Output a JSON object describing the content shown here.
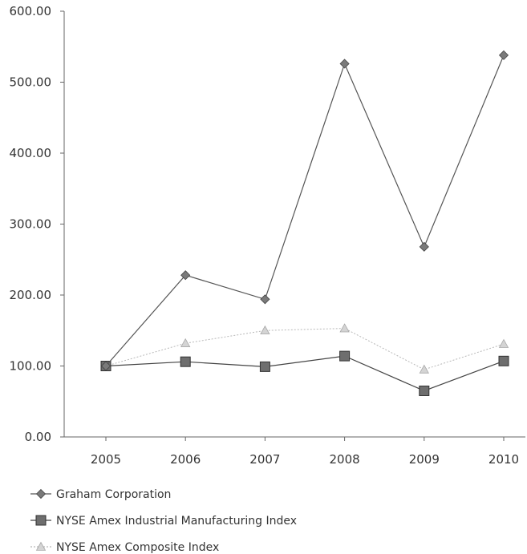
{
  "chart_data": {
    "type": "line",
    "title": "",
    "xlabel": "",
    "ylabel": "",
    "categories": [
      "2005",
      "2006",
      "2007",
      "2008",
      "2009",
      "2010"
    ],
    "ylim": [
      0,
      600
    ],
    "yticks": [
      "0.00",
      "100.00",
      "200.00",
      "300.00",
      "400.00",
      "500.00",
      "600.00"
    ],
    "grid": false,
    "legend_position": "bottom-left",
    "series": [
      {
        "name": "Graham Corporation",
        "marker": "diamond",
        "color": "#555555",
        "values": [
          100,
          228,
          194,
          526,
          268,
          538
        ]
      },
      {
        "name": "NYSE Amex Industrial Manufacturing Index",
        "marker": "square",
        "color": "#444444",
        "values": [
          100,
          106,
          99,
          114,
          65,
          107
        ]
      },
      {
        "name": "NYSE Amex Composite Index",
        "marker": "triangle",
        "color": "#b8b8b8",
        "values": [
          100,
          132,
          150,
          153,
          95,
          131
        ]
      }
    ]
  }
}
